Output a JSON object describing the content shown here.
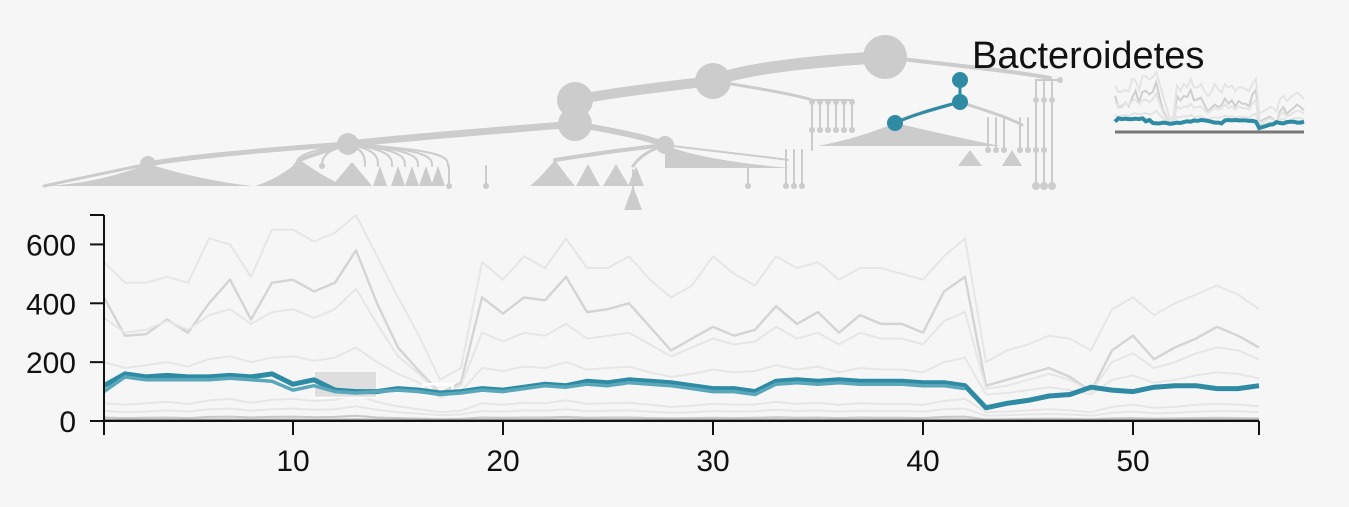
{
  "colors": {
    "background": "#f6f6f6",
    "tree": "#cccccc",
    "highlight": "#2e8ba3",
    "highlight_light": "#5aa7bb",
    "context_line": "#d4d4d4",
    "faint_line": "#e6e6e6",
    "axis": "#111111"
  },
  "tree": {
    "selected_label": "Bacteroidetes"
  },
  "chart_data": {
    "type": "line",
    "title": "",
    "xlabel": "",
    "ylabel": "",
    "xlim": [
      1,
      56
    ],
    "ylim": [
      0,
      700
    ],
    "x_ticks": [
      10,
      20,
      30,
      40,
      50
    ],
    "y_ticks": [
      0,
      200,
      400,
      600
    ],
    "grid": false,
    "highlight_series": [
      {
        "role": "primary",
        "values": [
          120,
          160,
          150,
          155,
          150,
          150,
          155,
          150,
          160,
          125,
          140,
          105,
          100,
          100,
          110,
          105,
          95,
          100,
          110,
          105,
          115,
          125,
          120,
          135,
          130,
          140,
          135,
          130,
          120,
          110,
          110,
          100,
          135,
          140,
          135,
          140,
          135,
          135,
          135,
          130,
          130,
          120,
          45,
          60,
          70,
          85,
          90,
          115,
          105,
          100,
          115,
          120,
          120,
          110,
          110,
          120
        ]
      },
      {
        "role": "secondary",
        "values": [
          100,
          150,
          140,
          140,
          140,
          140,
          145,
          140,
          135,
          105,
          120,
          100,
          95,
          100,
          105,
          100,
          90,
          95,
          105,
          100,
          110,
          120,
          115,
          125,
          120,
          130,
          125,
          120,
          110,
          100,
          100,
          90,
          125,
          130,
          125,
          130,
          125,
          125,
          125,
          120,
          120,
          110
        ]
      }
    ],
    "context_series": [
      {
        "style": "mid",
        "values": [
          420,
          290,
          295,
          345,
          300,
          400,
          480,
          345,
          470,
          480,
          440,
          470,
          580,
          400,
          250,
          170,
          95,
          130,
          420,
          365,
          420,
          410,
          490,
          370,
          380,
          400,
          320,
          240,
          280,
          320,
          290,
          310,
          390,
          330,
          370,
          300,
          360,
          330,
          330,
          300,
          440,
          490,
          120,
          140,
          160,
          180,
          150,
          100,
          240,
          290,
          210,
          250,
          280,
          320,
          290,
          250
        ]
      },
      {
        "style": "faint",
        "values": [
          540,
          470,
          470,
          490,
          470,
          620,
          600,
          490,
          650,
          650,
          610,
          640,
          700,
          560,
          420,
          290,
          140,
          180,
          540,
          480,
          560,
          520,
          620,
          520,
          520,
          560,
          480,
          420,
          460,
          560,
          500,
          460,
          560,
          520,
          540,
          480,
          520,
          520,
          500,
          480,
          560,
          620,
          200,
          240,
          260,
          290,
          280,
          240,
          380,
          420,
          360,
          400,
          430,
          460,
          430,
          380
        ]
      },
      {
        "style": "faint",
        "values": [
          350,
          300,
          310,
          340,
          310,
          360,
          380,
          330,
          370,
          380,
          350,
          380,
          450,
          330,
          220,
          160,
          90,
          120,
          300,
          270,
          300,
          290,
          330,
          280,
          290,
          300,
          260,
          220,
          250,
          280,
          260,
          270,
          320,
          280,
          300,
          260,
          300,
          280,
          280,
          260,
          340,
          370,
          110,
          120,
          140,
          160,
          140,
          100,
          200,
          230,
          180,
          200,
          230,
          250,
          240,
          210
        ]
      },
      {
        "style": "faint",
        "values": [
          200,
          180,
          190,
          200,
          185,
          210,
          220,
          200,
          215,
          220,
          205,
          215,
          250,
          200,
          160,
          130,
          80,
          100,
          180,
          170,
          185,
          180,
          200,
          175,
          180,
          185,
          165,
          150,
          160,
          175,
          165,
          170,
          190,
          175,
          185,
          165,
          180,
          175,
          175,
          165,
          200,
          215,
          90,
          95,
          105,
          115,
          105,
          90,
          140,
          155,
          130,
          140,
          155,
          165,
          160,
          145
        ]
      },
      {
        "style": "faint",
        "values": [
          60,
          55,
          60,
          65,
          58,
          70,
          75,
          62,
          72,
          75,
          68,
          72,
          90,
          65,
          50,
          40,
          30,
          35,
          60,
          55,
          62,
          60,
          70,
          58,
          60,
          62,
          55,
          48,
          52,
          58,
          55,
          56,
          65,
          58,
          62,
          55,
          60,
          58,
          58,
          55,
          68,
          75,
          30,
          32,
          36,
          40,
          36,
          30,
          48,
          55,
          45,
          48,
          55,
          58,
          56,
          50
        ]
      },
      {
        "style": "faint",
        "values": [
          35,
          30,
          32,
          36,
          32,
          40,
          42,
          35,
          40,
          42,
          38,
          40,
          50,
          38,
          30,
          25,
          20,
          22,
          34,
          32,
          36,
          35,
          40,
          33,
          35,
          36,
          32,
          28,
          30,
          34,
          32,
          33,
          38,
          34,
          36,
          32,
          35,
          34,
          34,
          32,
          40,
          42,
          18,
          20,
          22,
          24,
          22,
          18,
          28,
          32,
          26,
          28,
          32,
          34,
          33,
          30
        ]
      },
      {
        "style": "base",
        "values": [
          12,
          10,
          11,
          12,
          10,
          14,
          15,
          12,
          14,
          15,
          13,
          14,
          18,
          12,
          10,
          8,
          6,
          7,
          12,
          11,
          12,
          12,
          14,
          11,
          12,
          12,
          10,
          9,
          10,
          11,
          10,
          11,
          13,
          11,
          12,
          10,
          12,
          11,
          11,
          10,
          14,
          15,
          5,
          6,
          7,
          8,
          7,
          6,
          9,
          10,
          8,
          9,
          10,
          11,
          10,
          9
        ]
      },
      {
        "style": "base",
        "values": [
          4,
          3,
          4,
          4,
          3,
          5,
          5,
          4,
          5,
          5,
          4,
          5,
          6,
          4,
          3,
          3,
          2,
          2,
          4,
          4,
          4,
          4,
          5,
          4,
          4,
          4,
          3,
          3,
          3,
          4,
          3,
          4,
          4,
          4,
          4,
          3,
          4,
          4,
          4,
          3,
          5,
          5,
          2,
          2,
          2,
          3,
          2,
          2,
          3,
          3,
          3,
          3,
          3,
          4,
          3,
          3
        ]
      }
    ]
  }
}
